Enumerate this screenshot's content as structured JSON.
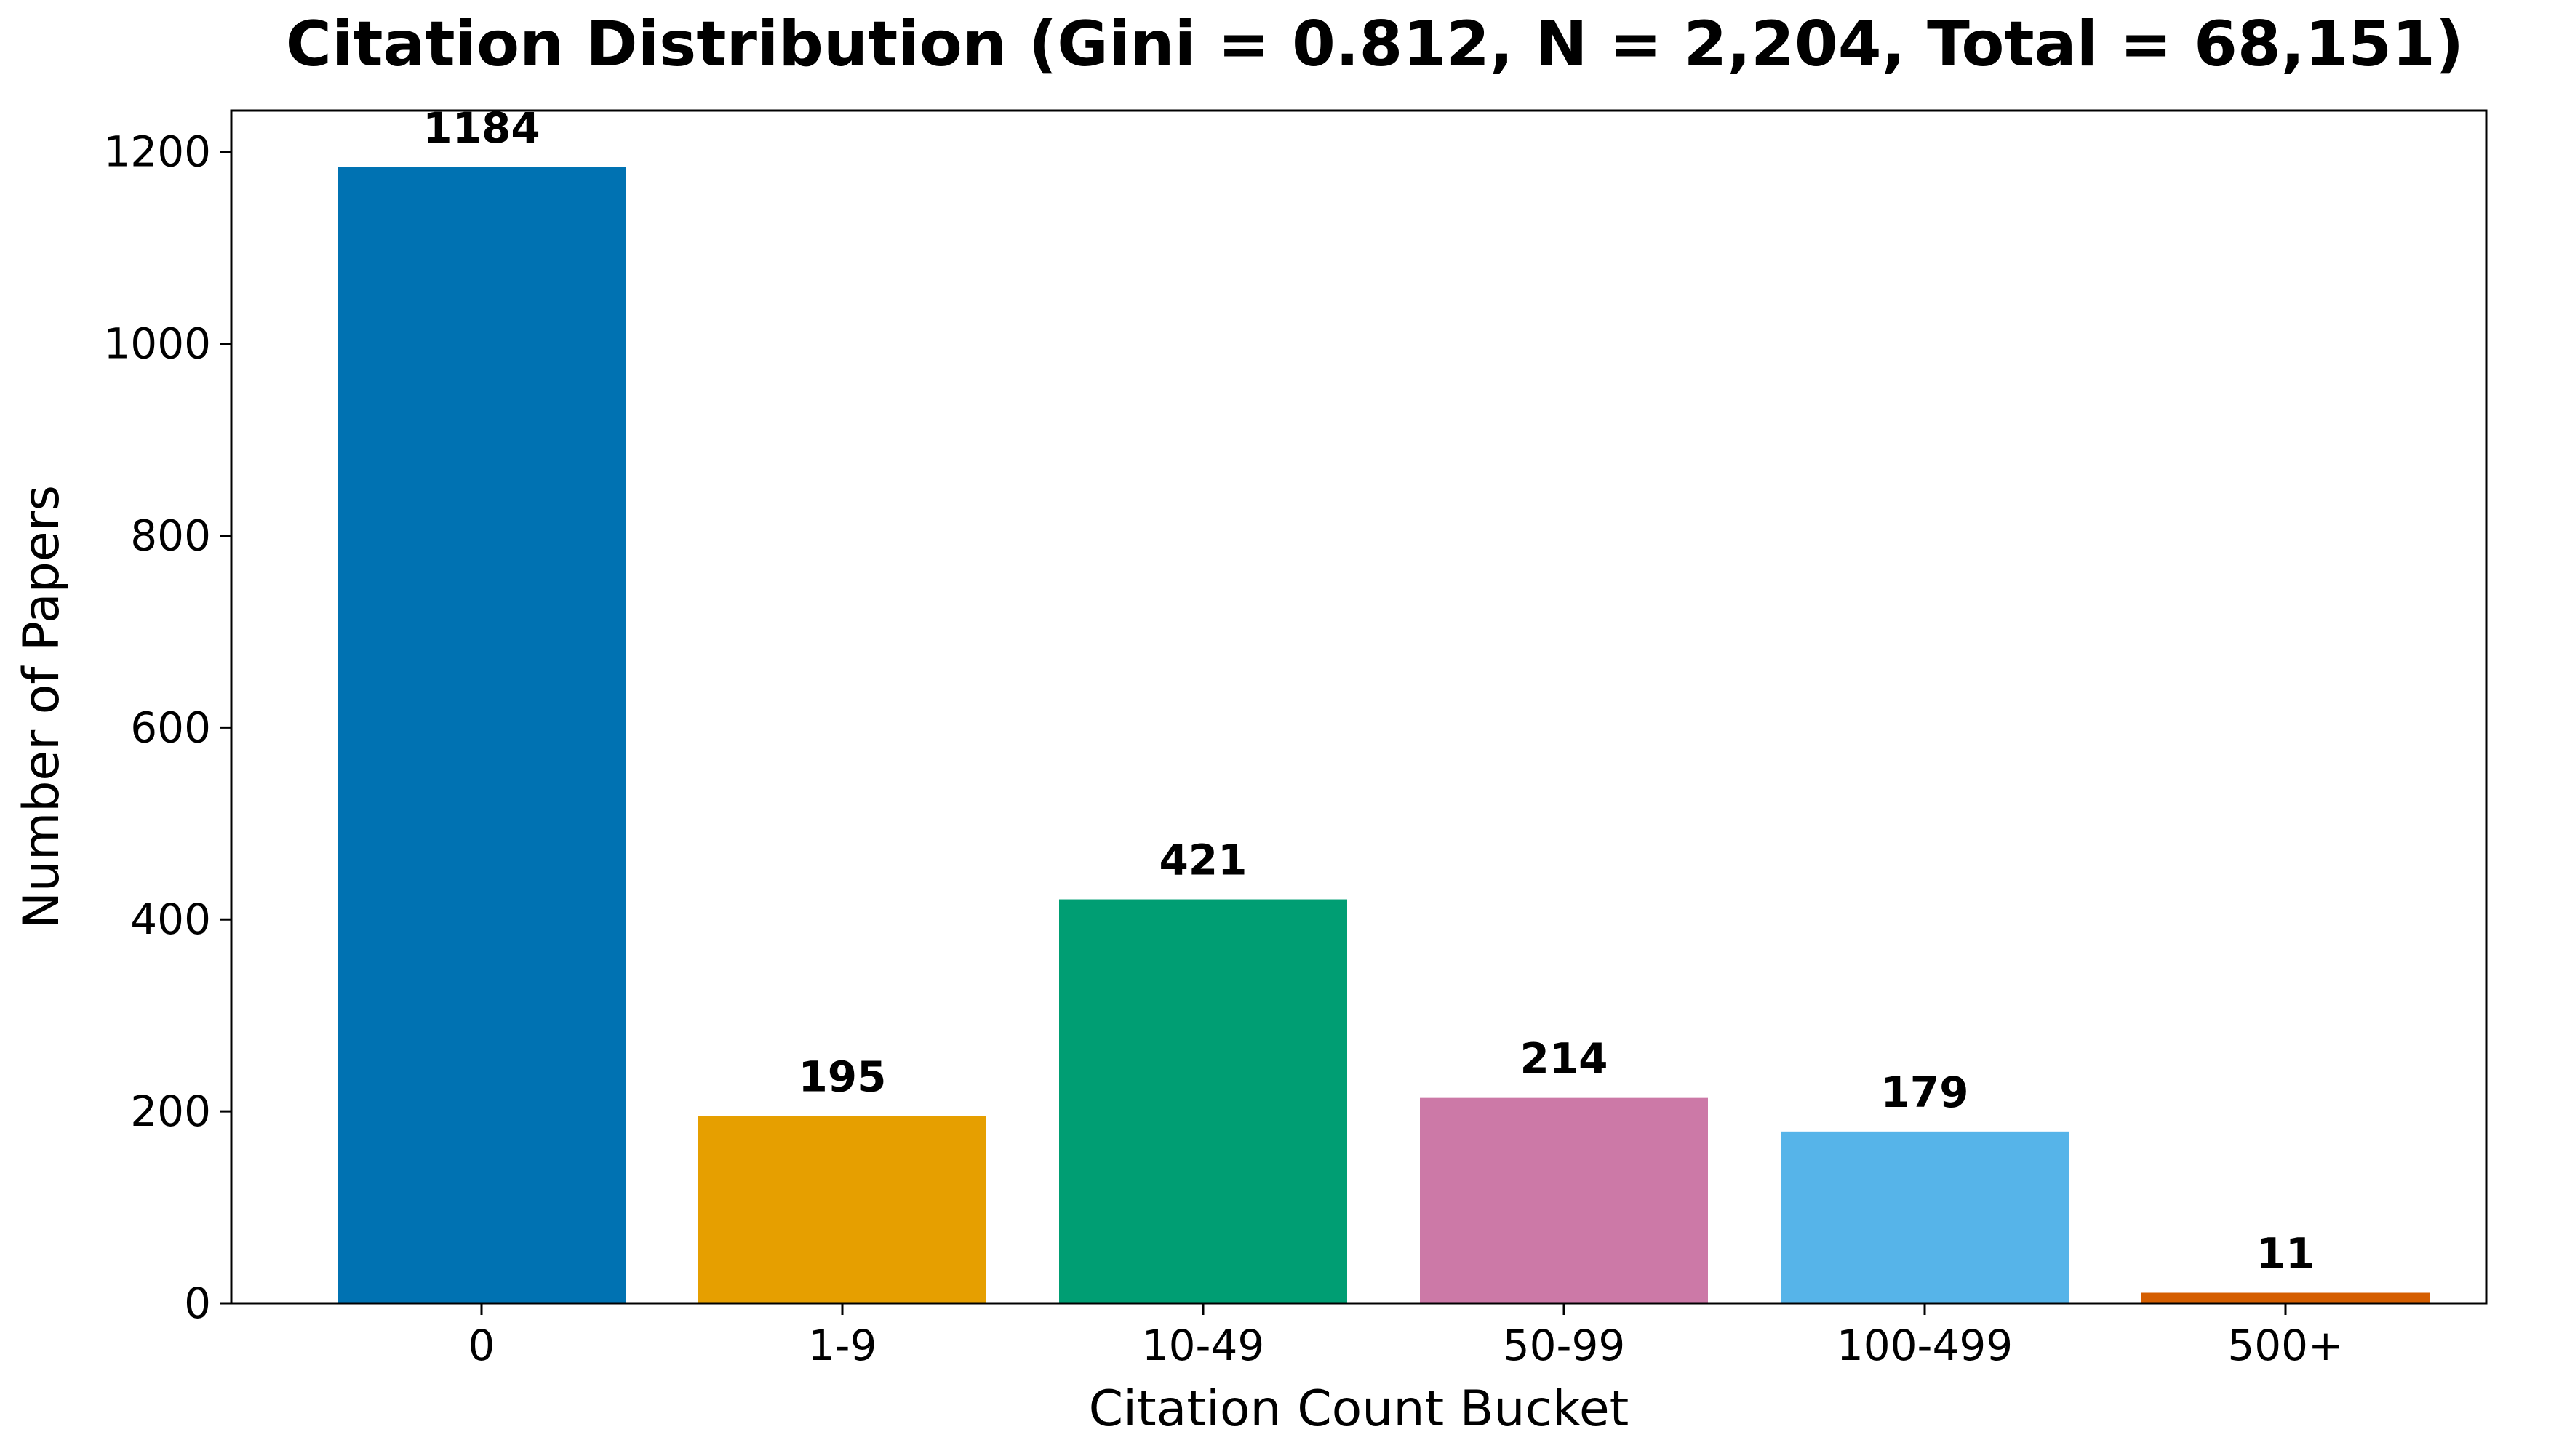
{
  "chart_data": {
    "type": "bar",
    "title": "Citation Distribution (Gini = 0.812, N = 2,204, Total = 68,151)",
    "xlabel": "Citation Count Bucket",
    "ylabel": "Number of Papers",
    "categories": [
      "0",
      "1-9",
      "10-49",
      "50-99",
      "100-499",
      "500+"
    ],
    "values": [
      1184,
      195,
      421,
      214,
      179,
      11
    ],
    "data_labels": [
      "1184",
      "195",
      "421",
      "214",
      "179",
      "11"
    ],
    "colors": [
      "#0072b2",
      "#e69f00",
      "#009e73",
      "#cc79a7",
      "#56b4e9",
      "#d55e00"
    ],
    "ylim": [
      0,
      1243
    ],
    "yticks": [
      0,
      200,
      400,
      600,
      800,
      1000,
      1200
    ],
    "ytick_labels": [
      "0",
      "200",
      "400",
      "600",
      "800",
      "1000",
      "1200"
    ],
    "grid": false,
    "legend": "none"
  }
}
